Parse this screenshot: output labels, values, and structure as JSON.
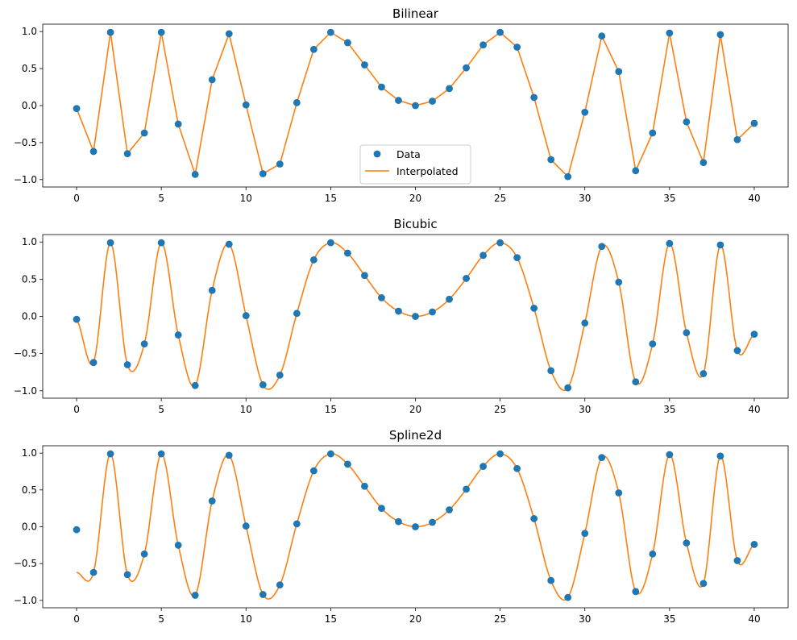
{
  "colors": {
    "data": "#1f77b4",
    "interp": "#ff7f0e",
    "axis": "#000000"
  },
  "chart_data": [
    {
      "type": "line",
      "title": "Bilinear",
      "xlim": [
        -2,
        42
      ],
      "ylim": [
        -1.1,
        1.1
      ],
      "xticks": [
        0,
        5,
        10,
        15,
        20,
        25,
        30,
        35,
        40
      ],
      "yticks": [
        -1.0,
        -0.5,
        0.0,
        0.5,
        1.0
      ],
      "xtick_labels": [
        "0",
        "5",
        "10",
        "15",
        "20",
        "25",
        "30",
        "35",
        "40"
      ],
      "ytick_labels": [
        "−1.0",
        "−0.5",
        "0.0",
        "0.5",
        "1.0"
      ],
      "legend": {
        "placement": "lower-center",
        "entries": [
          "Data",
          "Interpolated"
        ]
      },
      "series": [
        {
          "name": "Data",
          "kind": "scatter",
          "x": [
            0,
            1,
            2,
            3,
            4,
            5,
            6,
            7,
            8,
            9,
            10,
            11,
            12,
            13,
            14,
            15,
            16,
            17,
            18,
            19,
            20,
            21,
            22,
            23,
            24,
            25,
            26,
            27,
            28,
            29,
            30,
            31,
            32,
            33,
            34,
            35,
            36,
            37,
            38,
            39,
            40
          ],
          "y": [
            -0.04,
            -0.62,
            0.99,
            -0.65,
            -0.37,
            0.99,
            -0.25,
            -0.93,
            0.35,
            0.97,
            0.01,
            -0.92,
            -0.79,
            0.04,
            0.76,
            0.99,
            0.85,
            0.55,
            0.25,
            0.07,
            0,
            0.06,
            0.23,
            0.51,
            0.82,
            0.99,
            0.79,
            0.11,
            -0.73,
            -0.96,
            -0.09,
            0.94,
            0.46,
            -0.88,
            -0.37,
            0.98,
            -0.22,
            -0.77,
            0.96,
            -0.46,
            -0.24
          ]
        },
        {
          "name": "Interpolated",
          "kind": "line",
          "x": [
            0,
            1,
            2,
            3,
            4,
            5,
            6,
            7,
            8,
            9,
            10,
            11,
            12,
            13,
            14,
            15,
            16,
            17,
            18,
            19,
            20,
            21,
            22,
            23,
            24,
            25,
            26,
            27,
            28,
            29,
            30,
            31,
            32,
            33,
            34,
            35,
            36,
            37,
            38,
            39,
            40
          ],
          "y": [
            -0.04,
            -0.62,
            0.99,
            -0.65,
            -0.37,
            0.99,
            -0.25,
            -0.93,
            0.35,
            0.97,
            0.01,
            -0.92,
            -0.79,
            0.04,
            0.76,
            0.99,
            0.85,
            0.55,
            0.25,
            0.07,
            0,
            0.06,
            0.23,
            0.51,
            0.82,
            0.99,
            0.79,
            0.11,
            -0.73,
            -0.96,
            -0.09,
            0.94,
            0.46,
            -0.88,
            -0.37,
            0.98,
            -0.22,
            -0.77,
            0.96,
            -0.46,
            -0.24
          ]
        }
      ]
    },
    {
      "type": "line",
      "title": "Bicubic",
      "xlim": [
        -2,
        42
      ],
      "ylim": [
        -1.1,
        1.1
      ],
      "xticks": [
        0,
        5,
        10,
        15,
        20,
        25,
        30,
        35,
        40
      ],
      "yticks": [
        -1.0,
        -0.5,
        0.0,
        0.5,
        1.0
      ],
      "xtick_labels": [
        "0",
        "5",
        "10",
        "15",
        "20",
        "25",
        "30",
        "35",
        "40"
      ],
      "ytick_labels": [
        "−1.0",
        "−0.5",
        "0.0",
        "0.5",
        "1.0"
      ],
      "series": [
        {
          "name": "Data",
          "kind": "scatter",
          "x": [
            0,
            1,
            2,
            3,
            4,
            5,
            6,
            7,
            8,
            9,
            10,
            11,
            12,
            13,
            14,
            15,
            16,
            17,
            18,
            19,
            20,
            21,
            22,
            23,
            24,
            25,
            26,
            27,
            28,
            29,
            30,
            31,
            32,
            33,
            34,
            35,
            36,
            37,
            38,
            39,
            40
          ],
          "y": [
            -0.04,
            -0.62,
            0.99,
            -0.65,
            -0.37,
            0.99,
            -0.25,
            -0.93,
            0.35,
            0.97,
            0.01,
            -0.92,
            -0.79,
            0.04,
            0.76,
            0.99,
            0.85,
            0.55,
            0.25,
            0.07,
            0,
            0.06,
            0.23,
            0.51,
            0.82,
            0.99,
            0.79,
            0.11,
            -0.73,
            -0.96,
            -0.09,
            0.94,
            0.46,
            -0.88,
            -0.37,
            0.98,
            -0.22,
            -0.77,
            0.96,
            -0.46,
            -0.24
          ]
        },
        {
          "name": "Interpolated",
          "kind": "smooth",
          "x": [
            0,
            1,
            2,
            3,
            4,
            5,
            6,
            7,
            8,
            9,
            10,
            11,
            12,
            13,
            14,
            15,
            16,
            17,
            18,
            19,
            20,
            21,
            22,
            23,
            24,
            25,
            26,
            27,
            28,
            29,
            30,
            31,
            32,
            33,
            34,
            35,
            36,
            37,
            38,
            39,
            40
          ],
          "y": [
            -0.04,
            -0.62,
            0.99,
            -0.65,
            -0.37,
            0.99,
            -0.25,
            -0.93,
            0.35,
            0.97,
            0.01,
            -0.92,
            -0.79,
            0.04,
            0.76,
            0.99,
            0.85,
            0.55,
            0.25,
            0.07,
            0,
            0.06,
            0.23,
            0.51,
            0.82,
            0.99,
            0.79,
            0.11,
            -0.73,
            -0.96,
            -0.09,
            0.94,
            0.46,
            -0.88,
            -0.37,
            0.98,
            -0.22,
            -0.77,
            0.96,
            -0.46,
            -0.24
          ]
        }
      ]
    },
    {
      "type": "line",
      "title": "Spline2d",
      "xlim": [
        -2,
        42
      ],
      "ylim": [
        -1.1,
        1.1
      ],
      "xticks": [
        0,
        5,
        10,
        15,
        20,
        25,
        30,
        35,
        40
      ],
      "yticks": [
        -1.0,
        -0.5,
        0.0,
        0.5,
        1.0
      ],
      "xtick_labels": [
        "0",
        "5",
        "10",
        "15",
        "20",
        "25",
        "30",
        "35",
        "40"
      ],
      "ytick_labels": [
        "−1.0",
        "−0.5",
        "0.0",
        "0.5",
        "1.0"
      ],
      "series": [
        {
          "name": "Data",
          "kind": "scatter",
          "x": [
            0,
            1,
            2,
            3,
            4,
            5,
            6,
            7,
            8,
            9,
            10,
            11,
            12,
            13,
            14,
            15,
            16,
            17,
            18,
            19,
            20,
            21,
            22,
            23,
            24,
            25,
            26,
            27,
            28,
            29,
            30,
            31,
            32,
            33,
            34,
            35,
            36,
            37,
            38,
            39,
            40
          ],
          "y": [
            -0.04,
            -0.62,
            0.99,
            -0.65,
            -0.37,
            0.99,
            -0.25,
            -0.93,
            0.35,
            0.97,
            0.01,
            -0.92,
            -0.79,
            0.04,
            0.76,
            0.99,
            0.85,
            0.55,
            0.25,
            0.07,
            0,
            0.06,
            0.23,
            0.51,
            0.82,
            0.99,
            0.79,
            0.11,
            -0.73,
            -0.96,
            -0.09,
            0.94,
            0.46,
            -0.88,
            -0.37,
            0.98,
            -0.22,
            -0.77,
            0.96,
            -0.46,
            -0.24
          ]
        },
        {
          "name": "Interpolated",
          "kind": "smooth",
          "x": [
            0,
            1,
            2,
            3,
            4,
            5,
            6,
            7,
            8,
            9,
            10,
            11,
            12,
            13,
            14,
            15,
            16,
            17,
            18,
            19,
            20,
            21,
            22,
            23,
            24,
            25,
            26,
            27,
            28,
            29,
            30,
            31,
            32,
            33,
            34,
            35,
            36,
            37,
            38,
            39,
            40
          ],
          "y": [
            -0.62,
            -0.62,
            0.99,
            -0.65,
            -0.37,
            0.99,
            -0.25,
            -0.93,
            0.35,
            0.97,
            0.01,
            -0.92,
            -0.79,
            0.04,
            0.76,
            0.99,
            0.85,
            0.55,
            0.25,
            0.07,
            0,
            0.06,
            0.23,
            0.51,
            0.82,
            0.99,
            0.79,
            0.11,
            -0.73,
            -0.96,
            -0.09,
            0.94,
            0.46,
            -0.88,
            -0.37,
            0.98,
            -0.22,
            -0.77,
            0.96,
            -0.46,
            -0.24
          ]
        }
      ]
    }
  ]
}
